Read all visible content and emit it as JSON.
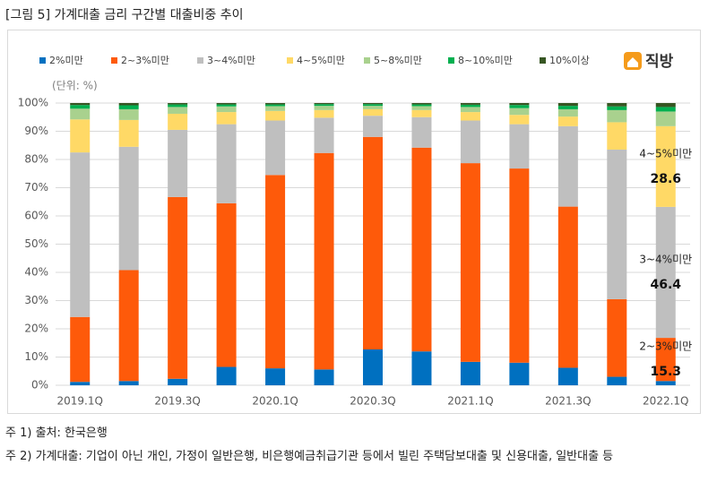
{
  "header": {
    "title": "[그림 5] 가계대출 금리 구간별 대출비중 추이"
  },
  "chart_data": {
    "type": "stacked-bar",
    "unit_label": "(단위: %)",
    "logo": "직방",
    "categories": [
      "2019.1Q",
      null,
      "2019.3Q",
      null,
      "2020.1Q",
      null,
      "2020.3Q",
      null,
      "2021.1Q",
      null,
      "2021.3Q",
      null,
      "2022.1Q"
    ],
    "series": [
      {
        "name": "2%미만",
        "color": "#0070c0",
        "values": [
          1.2,
          1.5,
          2.3,
          6.5,
          6.0,
          5.6,
          12.7,
          12.0,
          8.3,
          8.0,
          6.2,
          3.0,
          1.5
        ]
      },
      {
        "name": "2~3%미만",
        "color": "#fe5a0a",
        "values": [
          23.0,
          39.3,
          64.4,
          58.0,
          68.5,
          76.7,
          75.3,
          72.2,
          70.4,
          68.8,
          57.1,
          27.5,
          15.3
        ]
      },
      {
        "name": "3~4%미만",
        "color": "#bfbfbf",
        "values": [
          58.3,
          43.7,
          23.8,
          28.0,
          19.3,
          12.5,
          7.5,
          10.8,
          15.1,
          15.7,
          28.5,
          53.0,
          46.4
        ]
      },
      {
        "name": "4~5%미만",
        "color": "#ffd966",
        "values": [
          11.7,
          9.5,
          5.7,
          4.3,
          3.4,
          2.7,
          2.3,
          2.5,
          3.0,
          3.3,
          3.4,
          9.7,
          28.6
        ]
      },
      {
        "name": "5~8%미만",
        "color": "#a9d18e",
        "values": [
          3.8,
          3.8,
          2.4,
          2.0,
          1.7,
          1.5,
          1.2,
          1.4,
          1.8,
          2.4,
          2.6,
          4.3,
          5.2
        ]
      },
      {
        "name": "8~10%미만",
        "color": "#00b050",
        "values": [
          1.3,
          1.4,
          0.9,
          0.7,
          0.6,
          0.6,
          0.6,
          0.6,
          0.8,
          1.1,
          1.2,
          1.3,
          1.6
        ]
      },
      {
        "name": "10%이상",
        "color": "#375623",
        "values": [
          0.7,
          0.8,
          0.5,
          0.5,
          0.5,
          0.4,
          0.4,
          0.5,
          0.6,
          0.7,
          1.0,
          1.2,
          1.4
        ]
      }
    ],
    "ylim": [
      0,
      100
    ],
    "yticks": [
      {
        "value": 0,
        "label": "0%"
      },
      {
        "value": 10,
        "label": "10%"
      },
      {
        "value": 20,
        "label": "20%"
      },
      {
        "value": 30,
        "label": "30%"
      },
      {
        "value": 40,
        "label": "40%"
      },
      {
        "value": 50,
        "label": "50%"
      },
      {
        "value": 60,
        "label": "60%"
      },
      {
        "value": 70,
        "label": "70%"
      },
      {
        "value": 80,
        "label": "80%"
      },
      {
        "value": 90,
        "label": "90%"
      },
      {
        "value": 100,
        "label": "100%"
      }
    ],
    "grid": true
  },
  "notes": [
    "주 1) 출처: 한국은행",
    "주 2) 가계대출: 기업이 아닌 개인, 가정이 일반은행, 비은행예금취급기관 등에서 빌린 주택담보대출 및 신용대출, 일반대출 등"
  ]
}
